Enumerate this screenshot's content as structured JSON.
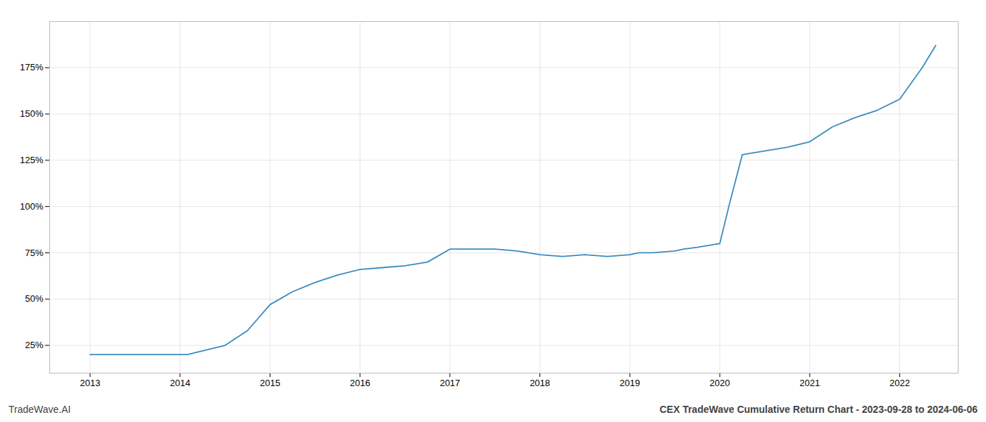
{
  "chart_data": {
    "type": "line",
    "x": [
      2013.0,
      2013.5,
      2014.0,
      2014.08,
      2014.25,
      2014.5,
      2014.75,
      2015.0,
      2015.25,
      2015.5,
      2015.75,
      2016.0,
      2016.25,
      2016.5,
      2016.75,
      2017.0,
      2017.25,
      2017.5,
      2017.75,
      2018.0,
      2018.25,
      2018.5,
      2018.75,
      2019.0,
      2019.1,
      2019.25,
      2019.5,
      2019.6,
      2019.75,
      2020.0,
      2020.1,
      2020.25,
      2020.5,
      2020.75,
      2021.0,
      2021.25,
      2021.5,
      2021.75,
      2022.0,
      2022.25,
      2022.4
    ],
    "values": [
      20,
      20,
      20,
      20,
      22,
      25,
      33,
      47,
      54,
      59,
      63,
      66,
      67,
      68,
      70,
      77,
      77,
      77,
      76,
      74,
      73,
      74,
      73,
      74,
      75,
      75,
      76,
      77,
      78,
      80,
      100,
      128,
      130,
      132,
      135,
      143,
      148,
      152,
      158,
      175,
      187
    ],
    "color": "#3a8bbf",
    "xlim": [
      2012.55,
      2022.65
    ],
    "ylim": [
      10,
      200
    ],
    "xticks": [
      2013,
      2014,
      2015,
      2016,
      2017,
      2018,
      2019,
      2020,
      2021,
      2022
    ],
    "yticks": [
      {
        "value": 25,
        "label": "25%"
      },
      {
        "value": 50,
        "label": "50%"
      },
      {
        "value": 75,
        "label": "75%"
      },
      {
        "value": 100,
        "label": "100%"
      },
      {
        "value": 125,
        "label": "125%"
      },
      {
        "value": 150,
        "label": "150%"
      },
      {
        "value": 175,
        "label": "175%"
      }
    ],
    "grid": true,
    "annotations": [
      "TradeWave.AI",
      "CEX TradeWave Cumulative Return Chart - 2023-09-28 to 2024-06-06"
    ]
  }
}
